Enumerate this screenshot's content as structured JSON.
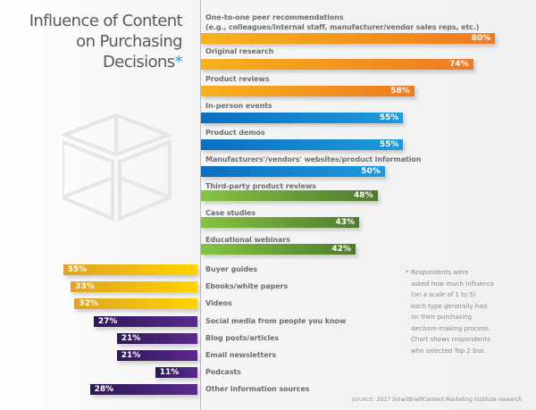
{
  "title": {
    "lines": [
      "Influence of Content",
      "on Purchasing",
      "Decisions"
    ],
    "asterisk": "*"
  },
  "note": {
    "asterisk": "*",
    "lines": [
      "Respondents were",
      "asked how much influence",
      "(on a scale of 1 to 5)",
      "each type generally had",
      "on their purchasing",
      "decision-making process.",
      "Chart shows respondents",
      "who selected Top 2 box."
    ]
  },
  "source": {
    "label": "SOURCE:",
    "text": "2017 SmartBrief/Content Marketing Institute research"
  },
  "colors": {
    "orange": [
      "#f7b21b",
      "#ef7a22"
    ],
    "blue": [
      "#0a6fc2",
      "#1f9bdc"
    ],
    "green": [
      "#86c440",
      "#4e7a30"
    ],
    "yellow": [
      "#e0a324",
      "#ffd400"
    ],
    "purple": [
      "#2e1855",
      "#5a2a8e"
    ],
    "asterisk": "#2c9be0"
  },
  "chart_data": {
    "type": "bar",
    "title": "Influence of Content on Purchasing Decisions*",
    "xlabel": "",
    "ylabel": "",
    "unit": "%",
    "xlim": [
      0,
      100
    ],
    "grid": false,
    "legend": "none",
    "top_section": {
      "orientation": "horizontal",
      "direction": "right",
      "series": [
        {
          "label": "One-to-one peer recommendations",
          "sublabel": "(e.g., colleagues/internal staff, manufacturer/vendor sales reps, etc.)",
          "value": 80,
          "display": "80%",
          "color": "orange"
        },
        {
          "label": "Original research",
          "value": 74,
          "display": "74%",
          "color": "orange"
        },
        {
          "label": "Product reviews",
          "value": 58,
          "display": "58%",
          "color": "orange"
        },
        {
          "label": "In-person events",
          "value": 55,
          "display": "55%",
          "color": "blue"
        },
        {
          "label": "Product demos",
          "value": 55,
          "display": "55%",
          "color": "blue"
        },
        {
          "label": "Manufacturers'/vendors' websites/product information",
          "value": 50,
          "display": "50%",
          "color": "blue"
        },
        {
          "label": "Third-party product reviews",
          "value": 48,
          "display": "48%",
          "color": "green"
        },
        {
          "label": "Case studies",
          "value": 43,
          "display": "43%",
          "color": "green"
        },
        {
          "label": "Educational webinars",
          "value": 42,
          "display": "42%",
          "color": "green"
        }
      ]
    },
    "bottom_section": {
      "orientation": "horizontal",
      "direction": "left",
      "series": [
        {
          "label": "Buyer guides",
          "value": 35,
          "display": "35%",
          "color": "yellow"
        },
        {
          "label": "Ebooks/white papers",
          "value": 33,
          "display": "33%",
          "color": "yellow"
        },
        {
          "label": "Videos",
          "value": 32,
          "display": "32%",
          "color": "yellow"
        },
        {
          "label": "Social media from people you know",
          "value": 27,
          "display": "27%",
          "color": "purple"
        },
        {
          "label": "Blog posts/articles",
          "value": 21,
          "display": "21%",
          "color": "purple"
        },
        {
          "label": "Email newsletters",
          "value": 21,
          "display": "21%",
          "color": "purple"
        },
        {
          "label": "Podcasts",
          "value": 11,
          "display": "11%",
          "color": "purple"
        },
        {
          "label": "Other information sources",
          "value": 28,
          "display": "28%",
          "color": "purple"
        }
      ]
    }
  }
}
